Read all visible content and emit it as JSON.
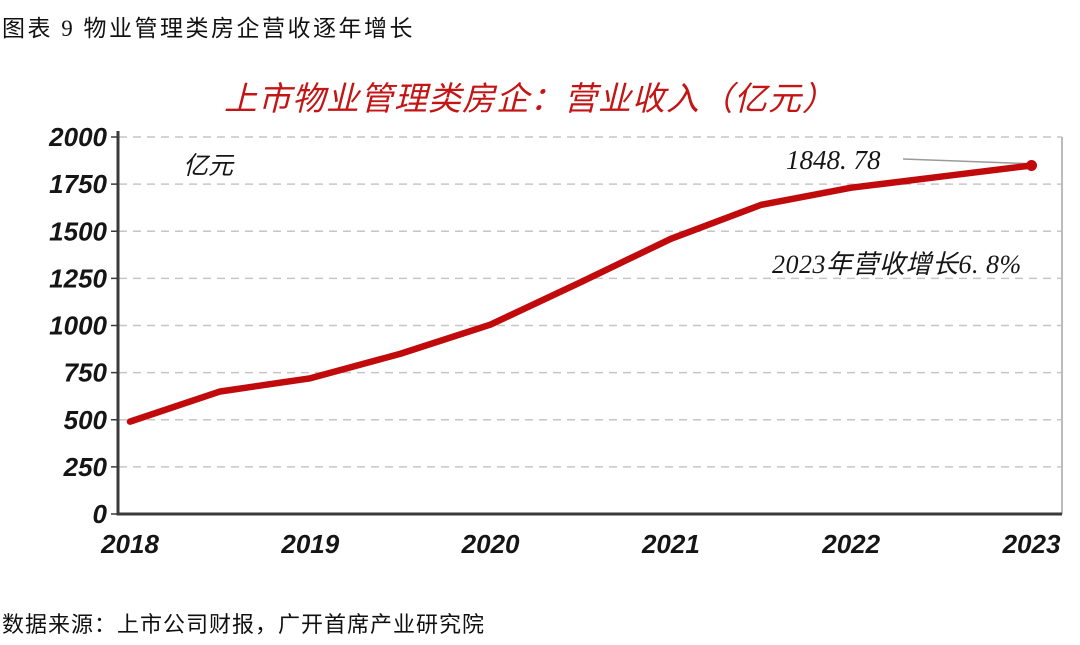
{
  "header": {
    "title": "图表 9 物业管理类房企营收逐年增长"
  },
  "chart": {
    "title": "上市物业管理类房企：营业收入（亿元）",
    "unit_label": "亿元",
    "annotation_value": "1848. 78",
    "annotation_growth": "2023年营收增长6. 8%",
    "colors": {
      "line": "#c00a0c",
      "title": "#c41414",
      "grid": "#c6c6c6",
      "axis": "#3a3a3a",
      "right_border": "#bcbcbc",
      "leader": "#9a9a9a",
      "text": "#151515"
    }
  },
  "chart_data": {
    "type": "line",
    "title": "上市物业管理类房企：营业收入（亿元）",
    "xlabel": "",
    "ylabel": "亿元",
    "x": [
      2018,
      2018.5,
      2019,
      2019.5,
      2020,
      2020.5,
      2021,
      2021.5,
      2022,
      2022.5,
      2023
    ],
    "values": [
      490,
      650,
      720,
      850,
      1005,
      1230,
      1460,
      1640,
      1731,
      1790,
      1848.78
    ],
    "x_ticks": [
      2018,
      2019,
      2020,
      2021,
      2022,
      2023
    ],
    "y_ticks": [
      0,
      250,
      500,
      750,
      1000,
      1250,
      1500,
      1750,
      2000
    ],
    "xlim": [
      2018,
      2023
    ],
    "ylim": [
      0,
      2000
    ],
    "grid": "horizontal-dashed",
    "legend": "none",
    "annotations": [
      {
        "text": "1848.78",
        "target_x": 2023,
        "target_y": 1848.78
      },
      {
        "text": "2023年营收增长6.8%",
        "growth_pct": 6.8
      }
    ]
  },
  "footer": {
    "source": "数据来源：上市公司财报，广开首席产业研究院"
  }
}
